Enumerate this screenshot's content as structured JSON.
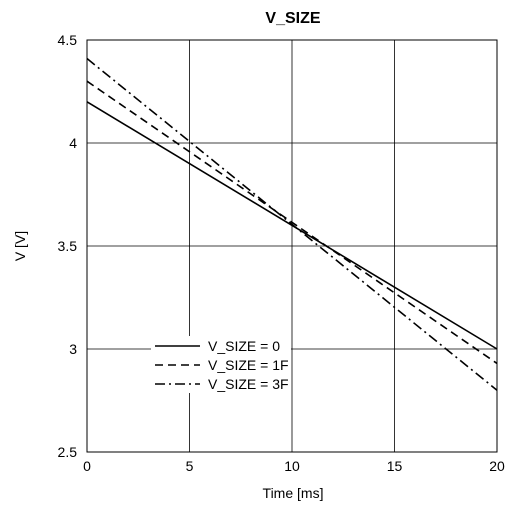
{
  "chart_data": {
    "type": "line",
    "title": "V_SIZE",
    "xlabel": "Time [ms]",
    "ylabel": "V [V]",
    "xlim": [
      0,
      20
    ],
    "ylim": [
      2.5,
      4.5
    ],
    "xticks": [
      0,
      5,
      10,
      15,
      20
    ],
    "yticks": [
      2.5,
      3,
      3.5,
      4,
      4.5
    ],
    "x_tick_labels": [
      "0",
      "5",
      "10",
      "15",
      "20"
    ],
    "y_tick_labels": [
      "2.5",
      "3",
      "3.5",
      "4",
      "4.5"
    ],
    "grid": true,
    "legend_position": "lower-left",
    "series": [
      {
        "name": "V_SIZE = 0",
        "style": "solid",
        "x": [
          0,
          20
        ],
        "y": [
          4.2,
          3.0
        ]
      },
      {
        "name": "V_SIZE = 1F",
        "style": "dashed",
        "x": [
          0,
          20
        ],
        "y": [
          4.3,
          2.93
        ]
      },
      {
        "name": "V_SIZE = 3F",
        "style": "dashdot",
        "x": [
          0,
          20
        ],
        "y": [
          4.41,
          2.8
        ]
      }
    ]
  }
}
